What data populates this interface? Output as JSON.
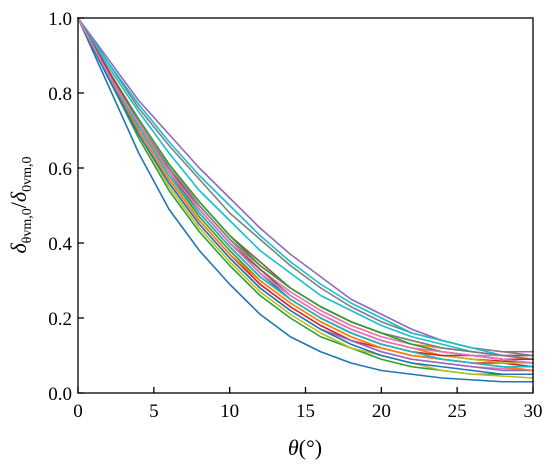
{
  "chart_data": {
    "type": "line",
    "x_label": {
      "symbol": "θ",
      "unit": "(°)"
    },
    "y_label": {
      "numerator": "δ",
      "numerator_sub": "θvm,0",
      "slash": "/",
      "denominator": "δ",
      "denominator_sub": "0vm,0"
    },
    "xlim": [
      0,
      30
    ],
    "ylim": [
      0.0,
      1.0
    ],
    "x_ticks": [
      0,
      5,
      10,
      15,
      20,
      25,
      30
    ],
    "x_tick_labels": [
      "0",
      "5",
      "10",
      "15",
      "20",
      "25",
      "30"
    ],
    "y_ticks": [
      0.0,
      0.2,
      0.4,
      0.6,
      0.8,
      1.0
    ],
    "y_tick_labels": [
      "0.0",
      "0.2",
      "0.4",
      "0.6",
      "0.8",
      "1.0"
    ],
    "grid": false,
    "legend": "none",
    "x": [
      0,
      2,
      4,
      6,
      8,
      10,
      12,
      14,
      16,
      18,
      20,
      22,
      24,
      26,
      28,
      30
    ],
    "series": [
      {
        "color": "#1f77b4",
        "values": [
          1.0,
          0.82,
          0.64,
          0.49,
          0.38,
          0.29,
          0.21,
          0.15,
          0.11,
          0.08,
          0.06,
          0.05,
          0.04,
          0.035,
          0.03,
          0.03
        ]
      },
      {
        "color": "#ff7f0e",
        "values": [
          1.0,
          0.86,
          0.72,
          0.6,
          0.5,
          0.41,
          0.33,
          0.27,
          0.22,
          0.18,
          0.15,
          0.13,
          0.12,
          0.11,
          0.1,
          0.1
        ]
      },
      {
        "color": "#2ca02c",
        "values": [
          1.0,
          0.84,
          0.68,
          0.54,
          0.43,
          0.34,
          0.26,
          0.2,
          0.15,
          0.12,
          0.09,
          0.07,
          0.06,
          0.05,
          0.05,
          0.05
        ]
      },
      {
        "color": "#d62728",
        "values": [
          1.0,
          0.85,
          0.71,
          0.58,
          0.48,
          0.39,
          0.31,
          0.25,
          0.2,
          0.16,
          0.13,
          0.11,
          0.1,
          0.09,
          0.085,
          0.08
        ]
      },
      {
        "color": "#9467bd",
        "values": [
          1.0,
          0.89,
          0.78,
          0.69,
          0.6,
          0.52,
          0.44,
          0.37,
          0.31,
          0.25,
          0.21,
          0.17,
          0.14,
          0.12,
          0.11,
          0.11
        ]
      },
      {
        "color": "#8c564b",
        "values": [
          1.0,
          0.86,
          0.73,
          0.61,
          0.51,
          0.42,
          0.35,
          0.28,
          0.23,
          0.19,
          0.16,
          0.14,
          0.12,
          0.11,
          0.1,
          0.1
        ]
      },
      {
        "color": "#e377c2",
        "values": [
          1.0,
          0.85,
          0.7,
          0.57,
          0.46,
          0.37,
          0.29,
          0.23,
          0.18,
          0.14,
          0.11,
          0.09,
          0.08,
          0.07,
          0.065,
          0.06
        ]
      },
      {
        "color": "#7f7f7f",
        "values": [
          1.0,
          0.88,
          0.76,
          0.66,
          0.57,
          0.48,
          0.41,
          0.34,
          0.28,
          0.23,
          0.19,
          0.16,
          0.14,
          0.12,
          0.11,
          0.1
        ]
      },
      {
        "color": "#bcbd22",
        "values": [
          1.0,
          0.84,
          0.69,
          0.55,
          0.44,
          0.35,
          0.27,
          0.21,
          0.16,
          0.12,
          0.1,
          0.08,
          0.06,
          0.05,
          0.045,
          0.04
        ]
      },
      {
        "color": "#17becf",
        "values": [
          1.0,
          0.88,
          0.77,
          0.67,
          0.58,
          0.5,
          0.42,
          0.35,
          0.29,
          0.24,
          0.2,
          0.16,
          0.14,
          0.12,
          0.1,
          0.09
        ]
      },
      {
        "color": "#ff7f0e",
        "values": [
          1.0,
          0.85,
          0.71,
          0.59,
          0.49,
          0.4,
          0.32,
          0.26,
          0.21,
          0.17,
          0.14,
          0.12,
          0.1,
          0.09,
          0.08,
          0.07
        ]
      },
      {
        "color": "#1f77b4",
        "values": [
          1.0,
          0.86,
          0.72,
          0.6,
          0.49,
          0.4,
          0.32,
          0.25,
          0.2,
          0.16,
          0.13,
          0.11,
          0.09,
          0.08,
          0.07,
          0.07
        ]
      },
      {
        "color": "#2ca02c",
        "values": [
          1.0,
          0.85,
          0.71,
          0.58,
          0.47,
          0.38,
          0.3,
          0.24,
          0.19,
          0.15,
          0.12,
          0.1,
          0.09,
          0.08,
          0.07,
          0.06
        ]
      },
      {
        "color": "#d62728",
        "values": [
          1.0,
          0.84,
          0.7,
          0.57,
          0.46,
          0.37,
          0.29,
          0.23,
          0.18,
          0.14,
          0.12,
          0.1,
          0.09,
          0.08,
          0.08,
          0.07
        ]
      },
      {
        "color": "#17becf",
        "values": [
          1.0,
          0.87,
          0.75,
          0.64,
          0.54,
          0.46,
          0.38,
          0.32,
          0.26,
          0.22,
          0.18,
          0.15,
          0.13,
          0.11,
          0.1,
          0.09
        ]
      },
      {
        "color": "#bcbd22",
        "values": [
          1.0,
          0.85,
          0.71,
          0.58,
          0.48,
          0.39,
          0.31,
          0.25,
          0.2,
          0.16,
          0.13,
          0.11,
          0.1,
          0.09,
          0.08,
          0.08
        ]
      },
      {
        "color": "#e377c2",
        "values": [
          1.0,
          0.86,
          0.73,
          0.61,
          0.5,
          0.41,
          0.33,
          0.27,
          0.22,
          0.18,
          0.15,
          0.13,
          0.11,
          0.1,
          0.1,
          0.09
        ]
      },
      {
        "color": "#8c564b",
        "values": [
          1.0,
          0.85,
          0.72,
          0.6,
          0.49,
          0.4,
          0.33,
          0.26,
          0.21,
          0.17,
          0.14,
          0.12,
          0.11,
          0.1,
          0.09,
          0.09
        ]
      },
      {
        "color": "#9467bd",
        "values": [
          1.0,
          0.84,
          0.69,
          0.56,
          0.45,
          0.36,
          0.28,
          0.22,
          0.17,
          0.14,
          0.11,
          0.09,
          0.08,
          0.07,
          0.06,
          0.06
        ]
      },
      {
        "color": "#7f7f7f",
        "values": [
          1.0,
          0.86,
          0.72,
          0.6,
          0.5,
          0.41,
          0.34,
          0.28,
          0.23,
          0.19,
          0.16,
          0.14,
          0.12,
          0.11,
          0.1,
          0.09
        ]
      },
      {
        "color": "#ff7f0e",
        "values": [
          1.0,
          0.84,
          0.7,
          0.57,
          0.46,
          0.37,
          0.3,
          0.24,
          0.19,
          0.15,
          0.12,
          0.1,
          0.09,
          0.08,
          0.07,
          0.06
        ]
      },
      {
        "color": "#2ca02c",
        "values": [
          1.0,
          0.86,
          0.73,
          0.61,
          0.51,
          0.42,
          0.34,
          0.28,
          0.23,
          0.19,
          0.16,
          0.13,
          0.11,
          0.1,
          0.09,
          0.08
        ]
      },
      {
        "color": "#d62728",
        "values": [
          1.0,
          0.86,
          0.72,
          0.59,
          0.48,
          0.39,
          0.31,
          0.25,
          0.2,
          0.16,
          0.13,
          0.11,
          0.1,
          0.1,
          0.09,
          0.09
        ]
      },
      {
        "color": "#1f77b4",
        "values": [
          1.0,
          0.84,
          0.69,
          0.56,
          0.45,
          0.36,
          0.28,
          0.22,
          0.17,
          0.13,
          0.1,
          0.08,
          0.07,
          0.06,
          0.05,
          0.05
        ]
      },
      {
        "color": "#17becf",
        "values": [
          1.0,
          0.85,
          0.71,
          0.58,
          0.48,
          0.39,
          0.31,
          0.25,
          0.2,
          0.16,
          0.13,
          0.11,
          0.09,
          0.08,
          0.07,
          0.07
        ]
      },
      {
        "color": "#e377c2",
        "values": [
          1.0,
          0.85,
          0.72,
          0.59,
          0.49,
          0.4,
          0.32,
          0.26,
          0.21,
          0.17,
          0.14,
          0.12,
          0.11,
          0.1,
          0.09,
          0.08
        ]
      }
    ]
  }
}
